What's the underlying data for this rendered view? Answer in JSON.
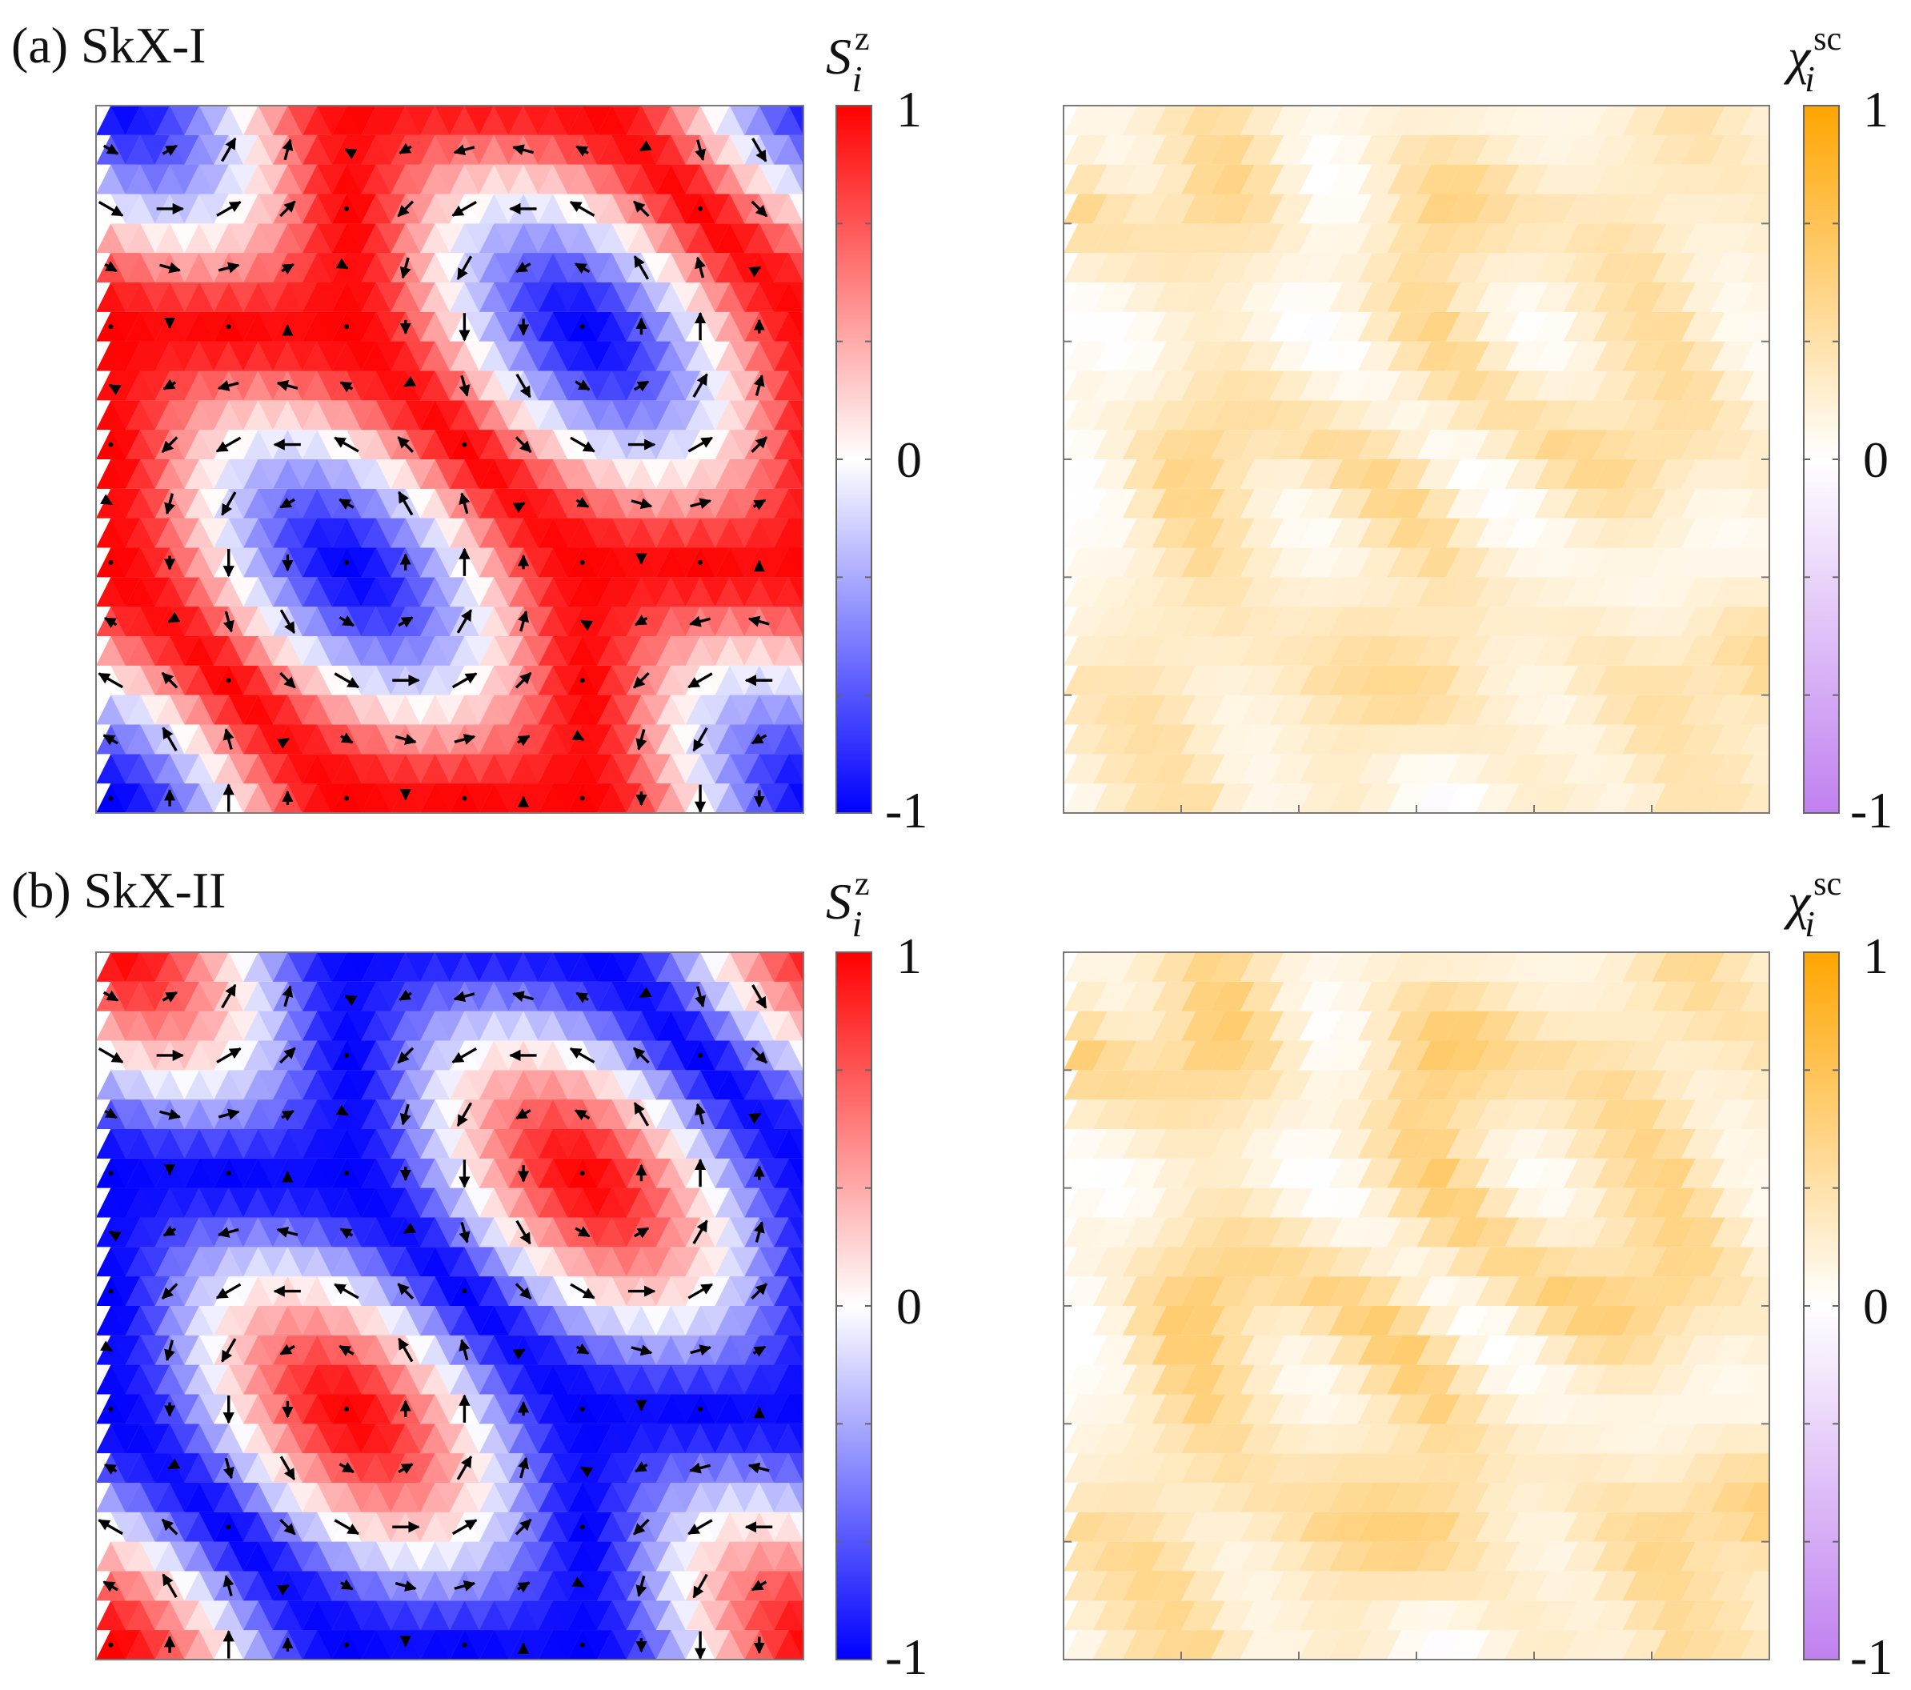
{
  "panels": [
    {
      "label": "(a) SkX-I",
      "spin_colorbar": {
        "symbol": "S",
        "sub": "i",
        "sup": "z",
        "ticks": [
          "1",
          "0",
          "-1"
        ],
        "colors": [
          "#ff0000",
          "#ffffff",
          "#0000ff"
        ]
      },
      "chirality_colorbar": {
        "symbol": "χ",
        "sub": "i",
        "sup": "sc",
        "ticks": [
          "1",
          "0",
          "-1"
        ],
        "colors": [
          "#ffa500",
          "#ffffff",
          "#c080f0"
        ]
      },
      "orange_level": 0.35
    },
    {
      "label": "(b) SkX-II",
      "spin_colorbar": {
        "symbol": "S",
        "sub": "i",
        "sup": "z",
        "ticks": [
          "1",
          "0",
          "-1"
        ],
        "colors": [
          "#ff0000",
          "#ffffff",
          "#0000ff"
        ]
      },
      "chirality_colorbar": {
        "symbol": "χ",
        "sub": "i",
        "sup": "sc",
        "ticks": [
          "1",
          "0",
          "-1"
        ],
        "colors": [
          "#ffa500",
          "#ffffff",
          "#c080f0"
        ]
      },
      "orange_level": 0.45
    }
  ],
  "chart_data": [
    {
      "type": "heatmap",
      "quantity": "S_i^z",
      "panel": "(a) SkX-I",
      "range": [
        -1,
        1
      ],
      "lattice": "triangular",
      "pattern": "skyrmion crystal with in-plane spin arrows; negative (blue) cores on hexagonal lattice"
    },
    {
      "type": "heatmap",
      "quantity": "chi_i^sc",
      "panel": "(a) SkX-I",
      "range": [
        -1,
        1
      ]
    },
    {
      "type": "heatmap",
      "quantity": "S_i^z",
      "panel": "(b) SkX-II",
      "range": [
        -1,
        1
      ],
      "lattice": "triangular",
      "pattern": "skyrmion crystal with in-plane spin arrows; positive (red) cores on hexagonal lattice"
    },
    {
      "type": "heatmap",
      "quantity": "chi_i^sc",
      "panel": "(b) SkX-II",
      "range": [
        -1,
        1
      ]
    }
  ]
}
